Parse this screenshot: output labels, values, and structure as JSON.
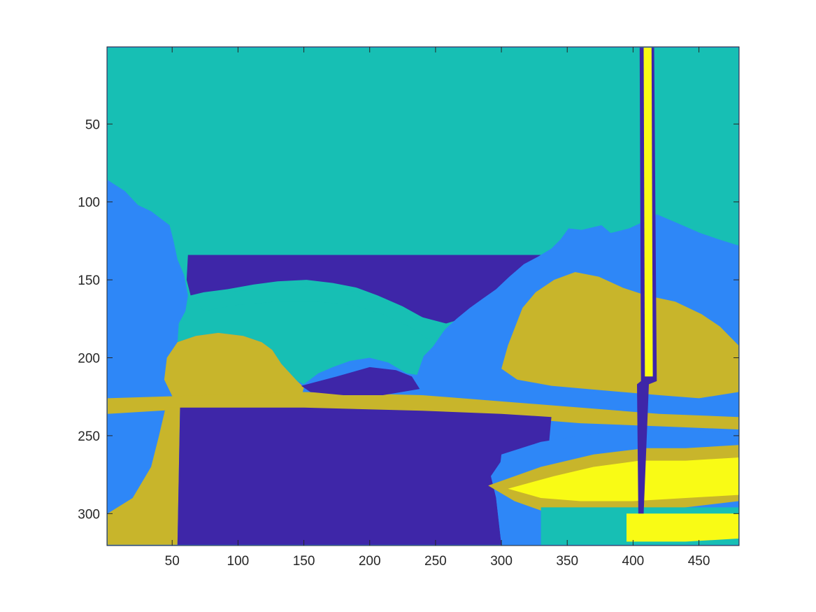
{
  "chart_data": {
    "type": "heatmap",
    "title": "",
    "xlabel": "",
    "ylabel": "",
    "image_size": {
      "columns": 480,
      "rows": 320
    },
    "xlim": [
      0.5,
      480.5
    ],
    "ylim": [
      0.5,
      320.5
    ],
    "y_direction": "reverse",
    "x_ticks": [
      50,
      100,
      150,
      200,
      250,
      300,
      350,
      400,
      450
    ],
    "y_ticks": [
      50,
      100,
      150,
      200,
      250,
      300
    ],
    "colormap": "parula",
    "color_classes": [
      {
        "level": 1,
        "color": "#3e26a8"
      },
      {
        "level": 2,
        "color": "#2e87f7"
      },
      {
        "level": 3,
        "color": "#17bfb4"
      },
      {
        "level": 4,
        "color": "#c8b52b"
      },
      {
        "level": 5,
        "color": "#f9fb15"
      }
    ],
    "regions": [
      {
        "level": 3,
        "desc": "sky",
        "points": [
          [
            1,
            1
          ],
          [
            480,
            1
          ],
          [
            480,
            128
          ],
          [
            465,
            124
          ],
          [
            451,
            120
          ],
          [
            432,
            113
          ],
          [
            418,
            108
          ],
          [
            410,
            112
          ],
          [
            397,
            117
          ],
          [
            383,
            120
          ],
          [
            376,
            115
          ],
          [
            361,
            118
          ],
          [
            351,
            117
          ],
          [
            345,
            124
          ],
          [
            338,
            130
          ],
          [
            328,
            135
          ],
          [
            317,
            140
          ],
          [
            306,
            148
          ],
          [
            296,
            156
          ],
          [
            286,
            162
          ],
          [
            276,
            168
          ],
          [
            266,
            175
          ],
          [
            257,
            182
          ],
          [
            248,
            193
          ],
          [
            241,
            199
          ],
          [
            236,
            211
          ],
          [
            228,
            210
          ],
          [
            214,
            203
          ],
          [
            200,
            200
          ],
          [
            185,
            202
          ],
          [
            172,
            206
          ],
          [
            161,
            210
          ],
          [
            150,
            217
          ],
          [
            145,
            215
          ],
          [
            133,
            204
          ],
          [
            126,
            195
          ],
          [
            118,
            190
          ],
          [
            104,
            186
          ],
          [
            85,
            184
          ],
          [
            68,
            186
          ],
          [
            54,
            190
          ],
          [
            55,
            178
          ],
          [
            60,
            170
          ],
          [
            62,
            160
          ],
          [
            59,
            147
          ],
          [
            54,
            137
          ],
          [
            51,
            125
          ],
          [
            48,
            115
          ],
          [
            34,
            106
          ],
          [
            24,
            102
          ],
          [
            14,
            93
          ],
          [
            1,
            86
          ]
        ]
      },
      {
        "level": 1,
        "desc": "bridge-deck",
        "points": [
          [
            62,
            134
          ],
          [
            338,
            134
          ],
          [
            336,
            142
          ],
          [
            330,
            150
          ],
          [
            316,
            158
          ],
          [
            300,
            165
          ],
          [
            283,
            170
          ],
          [
            270,
            175
          ],
          [
            258,
            178
          ],
          [
            240,
            174
          ],
          [
            225,
            167
          ],
          [
            206,
            160
          ],
          [
            190,
            155
          ],
          [
            172,
            152
          ],
          [
            152,
            150
          ],
          [
            130,
            151
          ],
          [
            112,
            153
          ],
          [
            92,
            156
          ],
          [
            74,
            158
          ],
          [
            64,
            160
          ],
          [
            61,
            150
          ]
        ]
      },
      {
        "level": 3,
        "desc": "arch-opening",
        "points": [
          [
            66,
            162
          ],
          [
            92,
            158
          ],
          [
            125,
            155
          ],
          [
            160,
            154
          ],
          [
            192,
            158
          ],
          [
            220,
            166
          ],
          [
            245,
            176
          ],
          [
            258,
            182
          ],
          [
            244,
            188
          ],
          [
            230,
            180
          ],
          [
            210,
            172
          ],
          [
            186,
            166
          ],
          [
            160,
            164
          ],
          [
            130,
            164
          ],
          [
            100,
            166
          ],
          [
            74,
            170
          ]
        ]
      },
      {
        "level": 2,
        "desc": "left-bank",
        "points": [
          [
            1,
            86
          ],
          [
            14,
            93
          ],
          [
            24,
            102
          ],
          [
            34,
            106
          ],
          [
            48,
            115
          ],
          [
            51,
            125
          ],
          [
            54,
            137
          ],
          [
            59,
            147
          ],
          [
            62,
            160
          ],
          [
            60,
            170
          ],
          [
            55,
            178
          ],
          [
            54,
            190
          ],
          [
            68,
            186
          ],
          [
            85,
            184
          ],
          [
            104,
            186
          ],
          [
            118,
            190
          ],
          [
            126,
            195
          ],
          [
            133,
            204
          ],
          [
            145,
            215
          ],
          [
            150,
            219
          ],
          [
            148,
            226
          ],
          [
            110,
            228
          ],
          [
            70,
            228
          ],
          [
            48,
            235
          ],
          [
            45,
            260
          ],
          [
            48,
            290
          ],
          [
            50,
            320
          ],
          [
            1,
            320
          ]
        ]
      },
      {
        "level": 2,
        "desc": "right-hills",
        "points": [
          [
            236,
            211
          ],
          [
            241,
            199
          ],
          [
            248,
            193
          ],
          [
            257,
            182
          ],
          [
            266,
            175
          ],
          [
            276,
            168
          ],
          [
            286,
            162
          ],
          [
            296,
            156
          ],
          [
            306,
            148
          ],
          [
            317,
            140
          ],
          [
            328,
            135
          ],
          [
            338,
            130
          ],
          [
            345,
            124
          ],
          [
            351,
            117
          ],
          [
            361,
            118
          ],
          [
            376,
            115
          ],
          [
            383,
            120
          ],
          [
            397,
            117
          ],
          [
            410,
            112
          ],
          [
            418,
            108
          ],
          [
            432,
            113
          ],
          [
            451,
            120
          ],
          [
            465,
            124
          ],
          [
            480,
            128
          ],
          [
            480,
            240
          ],
          [
            400,
            240
          ],
          [
            330,
            236
          ],
          [
            300,
            234
          ],
          [
            262,
            230
          ],
          [
            240,
            224
          ]
        ]
      },
      {
        "level": 4,
        "desc": "right-ochre",
        "points": [
          [
            316,
            168
          ],
          [
            326,
            158
          ],
          [
            340,
            150
          ],
          [
            356,
            145
          ],
          [
            374,
            148
          ],
          [
            392,
            155
          ],
          [
            410,
            160
          ],
          [
            432,
            164
          ],
          [
            452,
            172
          ],
          [
            466,
            180
          ],
          [
            480,
            192
          ],
          [
            480,
            222
          ],
          [
            450,
            226
          ],
          [
            420,
            224
          ],
          [
            392,
            222
          ],
          [
            365,
            220
          ],
          [
            338,
            218
          ],
          [
            312,
            214
          ],
          [
            300,
            207
          ],
          [
            305,
            192
          ]
        ]
      },
      {
        "level": 4,
        "desc": "left-slope",
        "points": [
          [
            54,
            190
          ],
          [
            68,
            186
          ],
          [
            85,
            184
          ],
          [
            104,
            186
          ],
          [
            118,
            190
          ],
          [
            126,
            195
          ],
          [
            133,
            204
          ],
          [
            145,
            215
          ],
          [
            150,
            219
          ],
          [
            148,
            226
          ],
          [
            120,
            229
          ],
          [
            80,
            228
          ],
          [
            52,
            228
          ],
          [
            44,
            214
          ],
          [
            46,
            200
          ]
        ]
      },
      {
        "level": 4,
        "desc": "shoreline",
        "points": [
          [
            1,
            226
          ],
          [
            150,
            222
          ],
          [
            240,
            224
          ],
          [
            300,
            228
          ],
          [
            360,
            232
          ],
          [
            420,
            236
          ],
          [
            480,
            238
          ],
          [
            480,
            246
          ],
          [
            420,
            244
          ],
          [
            360,
            242
          ],
          [
            300,
            238
          ],
          [
            240,
            236
          ],
          [
            150,
            234
          ],
          [
            60,
            233
          ],
          [
            1,
            236
          ]
        ]
      },
      {
        "level": 4,
        "desc": "left-foreground",
        "points": [
          [
            45,
            232
          ],
          [
            56,
            232
          ],
          [
            54,
            320
          ],
          [
            1,
            320
          ],
          [
            1,
            300
          ],
          [
            20,
            290
          ],
          [
            34,
            270
          ],
          [
            40,
            250
          ]
        ]
      },
      {
        "level": 1,
        "desc": "distant-water",
        "points": [
          [
            148,
            218
          ],
          [
            175,
            212
          ],
          [
            200,
            206
          ],
          [
            220,
            208
          ],
          [
            232,
            212
          ],
          [
            238,
            220
          ],
          [
            210,
            224
          ],
          [
            180,
            224
          ],
          [
            155,
            222
          ]
        ]
      },
      {
        "level": 1,
        "desc": "water",
        "points": [
          [
            56,
            232
          ],
          [
            150,
            232
          ],
          [
            240,
            234
          ],
          [
            300,
            236
          ],
          [
            338,
            238
          ],
          [
            336,
            256
          ],
          [
            320,
            262
          ],
          [
            300,
            266
          ],
          [
            292,
            276
          ],
          [
            296,
            290
          ],
          [
            300,
            320
          ],
          [
            54,
            320
          ]
        ]
      },
      {
        "level": 2,
        "desc": "lower-water",
        "points": [
          [
            300,
            262
          ],
          [
            330,
            254
          ],
          [
            360,
            250
          ],
          [
            400,
            246
          ],
          [
            440,
            246
          ],
          [
            480,
            248
          ],
          [
            480,
            320
          ],
          [
            300,
            320
          ],
          [
            296,
            290
          ]
        ]
      },
      {
        "level": 4,
        "desc": "boat-hull",
        "points": [
          [
            290,
            282
          ],
          [
            330,
            270
          ],
          [
            370,
            262
          ],
          [
            410,
            258
          ],
          [
            440,
            258
          ],
          [
            480,
            256
          ],
          [
            480,
            292
          ],
          [
            440,
            296
          ],
          [
            400,
            298
          ],
          [
            360,
            300
          ],
          [
            330,
            298
          ],
          [
            310,
            292
          ]
        ]
      },
      {
        "level": 5,
        "desc": "boat-deck",
        "points": [
          [
            305,
            284
          ],
          [
            340,
            276
          ],
          [
            370,
            270
          ],
          [
            405,
            266
          ],
          [
            440,
            266
          ],
          [
            480,
            264
          ],
          [
            480,
            288
          ],
          [
            440,
            290
          ],
          [
            400,
            292
          ],
          [
            360,
            292
          ],
          [
            330,
            290
          ]
        ]
      },
      {
        "level": 3,
        "desc": "boat-lower",
        "points": [
          [
            330,
            296
          ],
          [
            370,
            296
          ],
          [
            410,
            296
          ],
          [
            450,
            296
          ],
          [
            480,
            296
          ],
          [
            480,
            320
          ],
          [
            330,
            320
          ]
        ]
      },
      {
        "level": 5,
        "desc": "boat-lower-hi",
        "points": [
          [
            395,
            300
          ],
          [
            440,
            300
          ],
          [
            480,
            300
          ],
          [
            480,
            316
          ],
          [
            440,
            318
          ],
          [
            395,
            318
          ]
        ]
      },
      {
        "level": 1,
        "desc": "mast-outline",
        "points": [
          [
            405,
            1
          ],
          [
            416,
            1
          ],
          [
            418,
            215
          ],
          [
            412,
            217
          ],
          [
            408,
            300
          ],
          [
            404,
            300
          ],
          [
            403,
            217
          ],
          [
            406,
            215
          ]
        ]
      },
      {
        "level": 5,
        "desc": "mast",
        "points": [
          [
            408,
            1
          ],
          [
            414,
            1
          ],
          [
            415,
            212
          ],
          [
            409,
            212
          ]
        ]
      }
    ]
  }
}
